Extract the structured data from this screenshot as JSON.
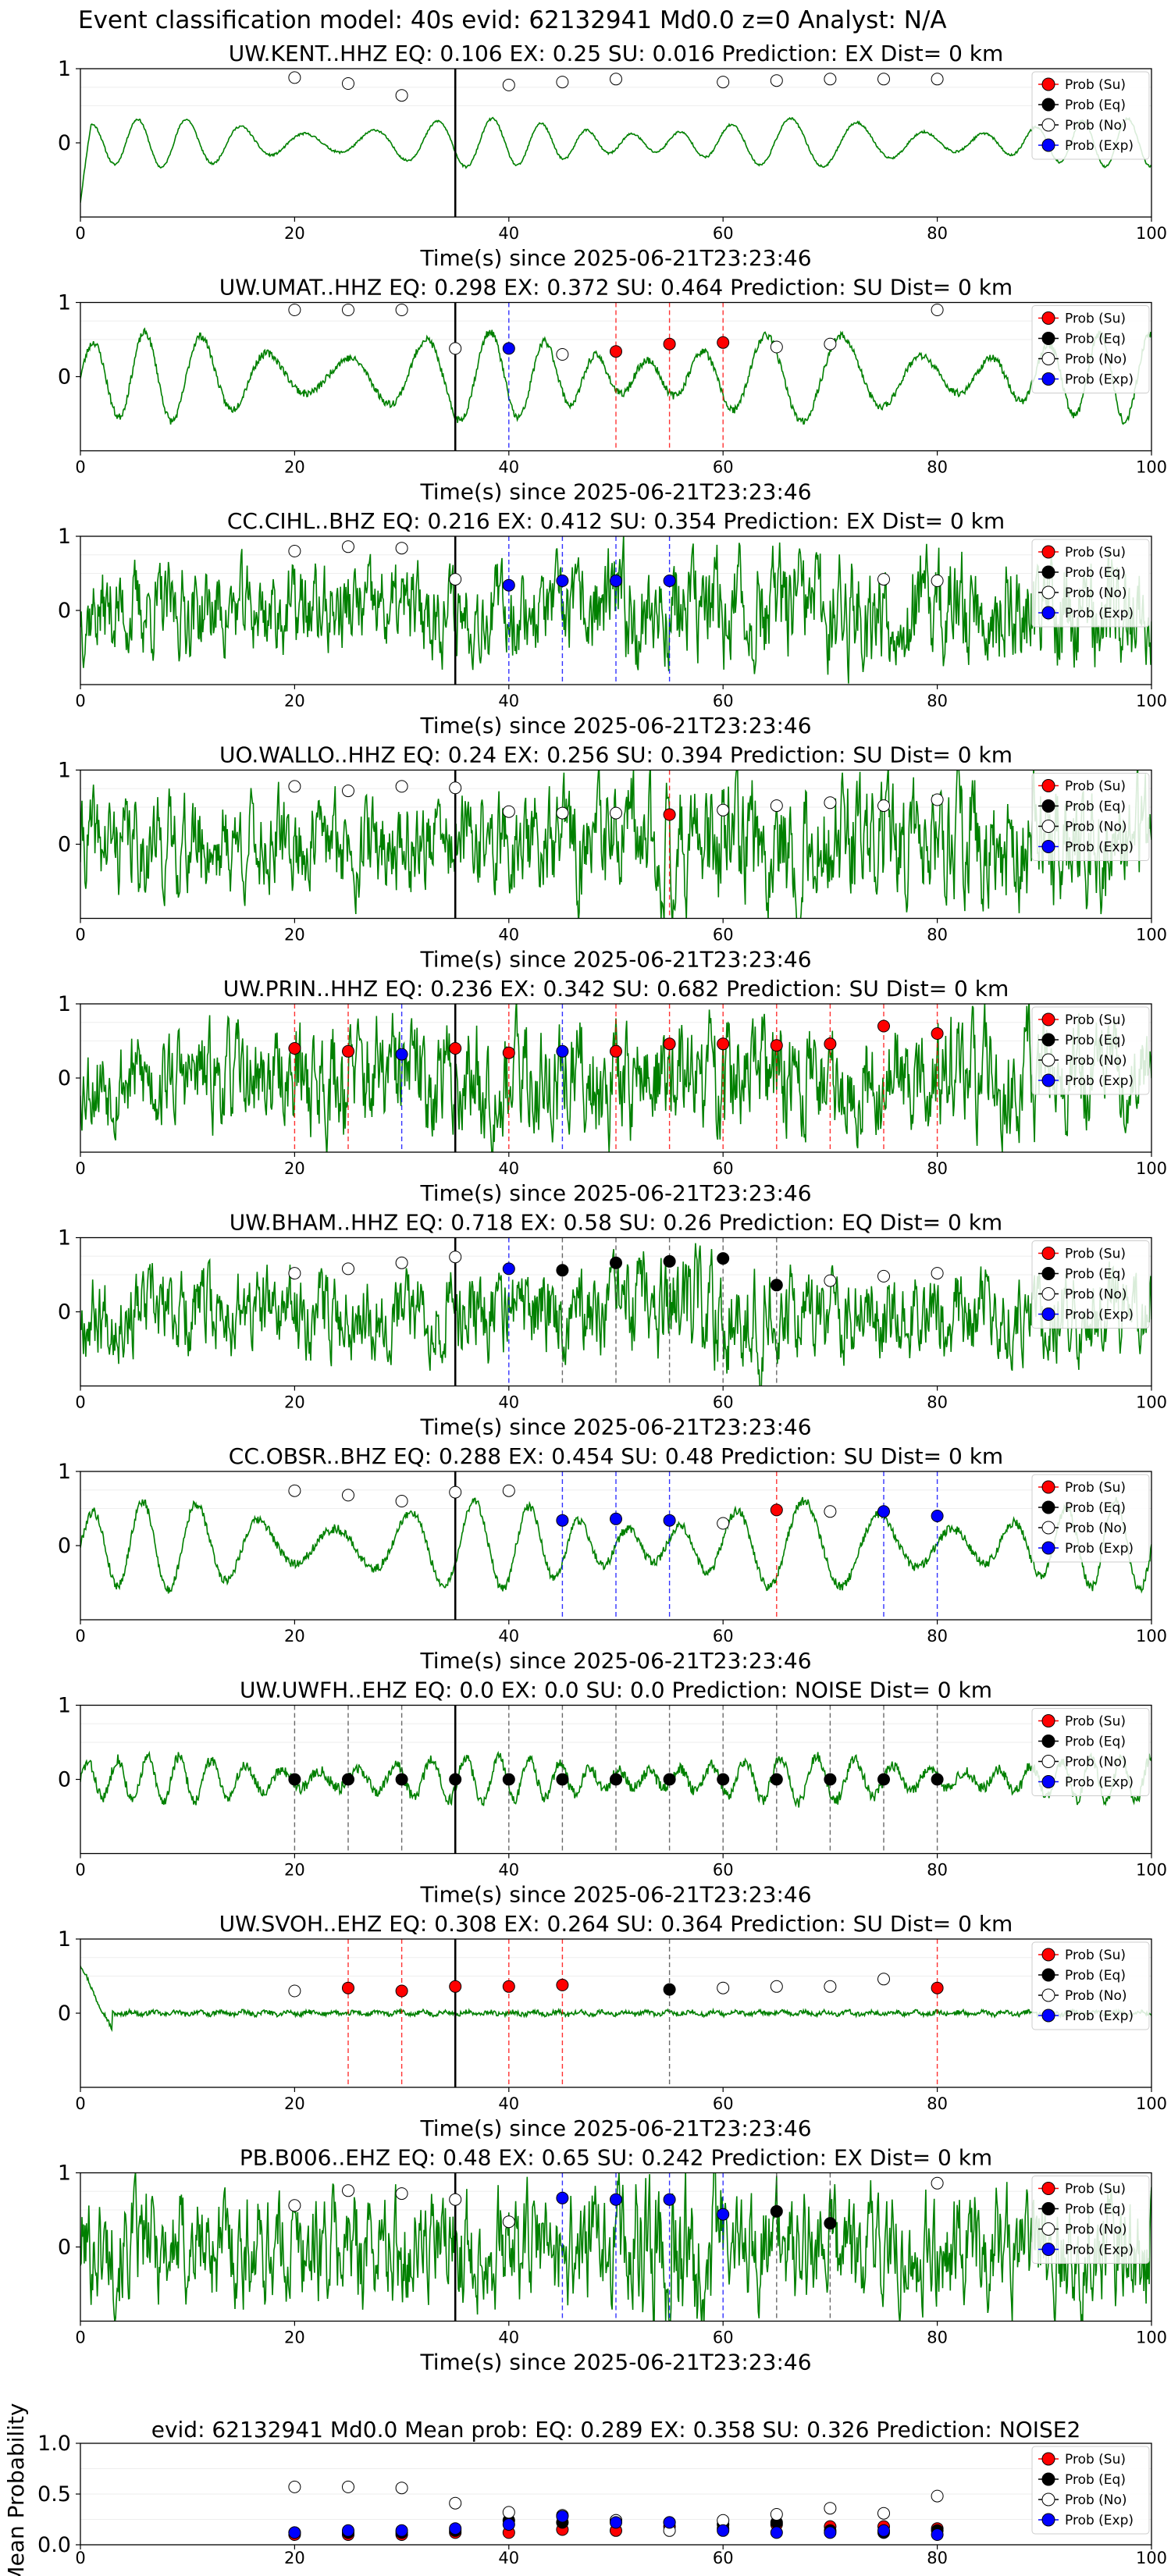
{
  "header": {
    "title": "Event classification model: 40s evid: 62132941 Md0.0 z=0 Analyst: N/A"
  },
  "legend_items": [
    {
      "label": "Prob (Su)",
      "color": "#ff0000"
    },
    {
      "label": "Prob (Eq)",
      "color": "#000000"
    },
    {
      "label": "Prob (No)",
      "color": "#ffffff"
    },
    {
      "label": "Prob (Exp)",
      "color": "#0000ff"
    }
  ],
  "colors": {
    "trace": "#008000",
    "su": "#ff0000",
    "eq": "#000000",
    "no": "#ffffff",
    "exp": "#0000ff"
  },
  "chart_data": [
    {
      "type": "line",
      "title": "UW.KENT..HHZ   EQ: 0.106  EX: 0.25  SU: 0.016   Prediction: EX    Dist= 0 km",
      "xlabel": "Time(s) since 2025-06-21T23:23:46",
      "xlim": [
        0,
        100
      ],
      "ylim": [
        -1,
        1
      ],
      "xticks": [
        0,
        20,
        40,
        60,
        80,
        100
      ],
      "yticks": [
        0,
        1
      ],
      "event_time": 35,
      "points": [
        {
          "x": 20,
          "class": "No",
          "y": 0.88
        },
        {
          "x": 25,
          "class": "No",
          "y": 0.8
        },
        {
          "x": 30,
          "class": "No",
          "y": 0.64
        },
        {
          "x": 40,
          "class": "No",
          "y": 0.78
        },
        {
          "x": 45,
          "class": "No",
          "y": 0.82
        },
        {
          "x": 50,
          "class": "No",
          "y": 0.86
        },
        {
          "x": 60,
          "class": "No",
          "y": 0.82
        },
        {
          "x": 65,
          "class": "No",
          "y": 0.84
        },
        {
          "x": 70,
          "class": "No",
          "y": 0.86
        },
        {
          "x": 75,
          "class": "No",
          "y": 0.86
        },
        {
          "x": 80,
          "class": "No",
          "y": 0.86
        }
      ]
    },
    {
      "type": "line",
      "title": "UW.UMAT..HHZ   EQ: 0.298  EX: 0.372  SU: 0.464   Prediction: SU    Dist= 0 km",
      "xlabel": "Time(s) since 2025-06-21T23:23:46",
      "xlim": [
        0,
        100
      ],
      "ylim": [
        -1,
        1
      ],
      "xticks": [
        0,
        20,
        40,
        60,
        80,
        100
      ],
      "yticks": [
        0,
        1
      ],
      "event_time": 35,
      "points": [
        {
          "x": 20,
          "class": "No",
          "y": 0.9
        },
        {
          "x": 25,
          "class": "No",
          "y": 0.9
        },
        {
          "x": 30,
          "class": "No",
          "y": 0.9
        },
        {
          "x": 35,
          "class": "No",
          "y": 0.38
        },
        {
          "x": 40,
          "class": "Exp",
          "y": 0.38
        },
        {
          "x": 45,
          "class": "No",
          "y": 0.3
        },
        {
          "x": 50,
          "class": "Su",
          "y": 0.34
        },
        {
          "x": 55,
          "class": "Su",
          "y": 0.44
        },
        {
          "x": 60,
          "class": "Su",
          "y": 0.46
        },
        {
          "x": 65,
          "class": "No",
          "y": 0.4
        },
        {
          "x": 70,
          "class": "No",
          "y": 0.44
        },
        {
          "x": 80,
          "class": "No",
          "y": 0.9
        }
      ]
    },
    {
      "type": "line",
      "title": "CC.CIHL..BHZ   EQ: 0.216  EX: 0.412  SU: 0.354   Prediction: EX    Dist= 0 km",
      "xlabel": "Time(s) since 2025-06-21T23:23:46",
      "xlim": [
        0,
        100
      ],
      "ylim": [
        -1,
        1
      ],
      "xticks": [
        0,
        20,
        40,
        60,
        80,
        100
      ],
      "yticks": [
        0,
        1
      ],
      "event_time": 35,
      "points": [
        {
          "x": 20,
          "class": "No",
          "y": 0.8
        },
        {
          "x": 25,
          "class": "No",
          "y": 0.86
        },
        {
          "x": 30,
          "class": "No",
          "y": 0.84
        },
        {
          "x": 35,
          "class": "No",
          "y": 0.42
        },
        {
          "x": 40,
          "class": "Exp",
          "y": 0.34
        },
        {
          "x": 45,
          "class": "Exp",
          "y": 0.4
        },
        {
          "x": 50,
          "class": "Exp",
          "y": 0.4
        },
        {
          "x": 55,
          "class": "Exp",
          "y": 0.4
        },
        {
          "x": 75,
          "class": "No",
          "y": 0.42
        },
        {
          "x": 80,
          "class": "No",
          "y": 0.4
        }
      ]
    },
    {
      "type": "line",
      "title": "UO.WALLO..HHZ   EQ: 0.24  EX: 0.256  SU: 0.394   Prediction: SU    Dist= 0 km",
      "xlabel": "Time(s) since 2025-06-21T23:23:46",
      "xlim": [
        0,
        100
      ],
      "ylim": [
        -1,
        1
      ],
      "xticks": [
        0,
        20,
        40,
        60,
        80,
        100
      ],
      "yticks": [
        0,
        1
      ],
      "event_time": 35,
      "points": [
        {
          "x": 20,
          "class": "No",
          "y": 0.78
        },
        {
          "x": 25,
          "class": "No",
          "y": 0.72
        },
        {
          "x": 30,
          "class": "No",
          "y": 0.78
        },
        {
          "x": 35,
          "class": "No",
          "y": 0.76
        },
        {
          "x": 40,
          "class": "No",
          "y": 0.44
        },
        {
          "x": 45,
          "class": "No",
          "y": 0.42
        },
        {
          "x": 50,
          "class": "No",
          "y": 0.42
        },
        {
          "x": 55,
          "class": "Su",
          "y": 0.4
        },
        {
          "x": 60,
          "class": "No",
          "y": 0.46
        },
        {
          "x": 65,
          "class": "No",
          "y": 0.52
        },
        {
          "x": 70,
          "class": "No",
          "y": 0.56
        },
        {
          "x": 75,
          "class": "No",
          "y": 0.52
        },
        {
          "x": 80,
          "class": "No",
          "y": 0.6
        }
      ]
    },
    {
      "type": "line",
      "title": "UW.PRIN..HHZ   EQ: 0.236  EX: 0.342  SU: 0.682   Prediction: SU    Dist= 0 km",
      "xlabel": "Time(s) since 2025-06-21T23:23:46",
      "xlim": [
        0,
        100
      ],
      "ylim": [
        -1,
        1
      ],
      "xticks": [
        0,
        20,
        40,
        60,
        80,
        100
      ],
      "yticks": [
        0,
        1
      ],
      "event_time": 35,
      "points": [
        {
          "x": 20,
          "class": "Su",
          "y": 0.4
        },
        {
          "x": 25,
          "class": "Su",
          "y": 0.36
        },
        {
          "x": 30,
          "class": "Exp",
          "y": 0.32
        },
        {
          "x": 35,
          "class": "Su",
          "y": 0.4
        },
        {
          "x": 40,
          "class": "Su",
          "y": 0.34
        },
        {
          "x": 45,
          "class": "Exp",
          "y": 0.36
        },
        {
          "x": 50,
          "class": "Su",
          "y": 0.36
        },
        {
          "x": 55,
          "class": "Su",
          "y": 0.46
        },
        {
          "x": 60,
          "class": "Su",
          "y": 0.46
        },
        {
          "x": 65,
          "class": "Su",
          "y": 0.44
        },
        {
          "x": 70,
          "class": "Su",
          "y": 0.46
        },
        {
          "x": 75,
          "class": "Su",
          "y": 0.7
        },
        {
          "x": 80,
          "class": "Su",
          "y": 0.6
        }
      ]
    },
    {
      "type": "line",
      "title": "UW.BHAM..HHZ   EQ: 0.718  EX: 0.58  SU: 0.26   Prediction: EQ    Dist= 0 km",
      "xlabel": "Time(s) since 2025-06-21T23:23:46",
      "xlim": [
        0,
        100
      ],
      "ylim": [
        -1,
        1
      ],
      "xticks": [
        0,
        20,
        40,
        60,
        80,
        100
      ],
      "yticks": [
        0,
        1
      ],
      "event_time": 35,
      "points": [
        {
          "x": 20,
          "class": "No",
          "y": 0.52
        },
        {
          "x": 25,
          "class": "No",
          "y": 0.58
        },
        {
          "x": 30,
          "class": "No",
          "y": 0.66
        },
        {
          "x": 35,
          "class": "No",
          "y": 0.74
        },
        {
          "x": 40,
          "class": "Exp",
          "y": 0.58
        },
        {
          "x": 45,
          "class": "Eq",
          "y": 0.56
        },
        {
          "x": 50,
          "class": "Eq",
          "y": 0.66
        },
        {
          "x": 55,
          "class": "Eq",
          "y": 0.68
        },
        {
          "x": 60,
          "class": "Eq",
          "y": 0.72
        },
        {
          "x": 65,
          "class": "Eq",
          "y": 0.36
        },
        {
          "x": 70,
          "class": "No",
          "y": 0.42
        },
        {
          "x": 75,
          "class": "No",
          "y": 0.48
        },
        {
          "x": 80,
          "class": "No",
          "y": 0.52
        }
      ]
    },
    {
      "type": "line",
      "title": "CC.OBSR..BHZ   EQ: 0.288  EX: 0.454  SU: 0.48   Prediction: SU    Dist= 0 km",
      "xlabel": "Time(s) since 2025-06-21T23:23:46",
      "xlim": [
        0,
        100
      ],
      "ylim": [
        -1,
        1
      ],
      "xticks": [
        0,
        20,
        40,
        60,
        80,
        100
      ],
      "yticks": [
        0,
        1
      ],
      "event_time": 35,
      "points": [
        {
          "x": 20,
          "class": "No",
          "y": 0.74
        },
        {
          "x": 25,
          "class": "No",
          "y": 0.68
        },
        {
          "x": 30,
          "class": "No",
          "y": 0.6
        },
        {
          "x": 35,
          "class": "No",
          "y": 0.72
        },
        {
          "x": 40,
          "class": "No",
          "y": 0.74
        },
        {
          "x": 45,
          "class": "Exp",
          "y": 0.34
        },
        {
          "x": 50,
          "class": "Exp",
          "y": 0.36
        },
        {
          "x": 55,
          "class": "Exp",
          "y": 0.34
        },
        {
          "x": 60,
          "class": "No",
          "y": 0.3
        },
        {
          "x": 65,
          "class": "Su",
          "y": 0.48
        },
        {
          "x": 70,
          "class": "No",
          "y": 0.46
        },
        {
          "x": 75,
          "class": "Exp",
          "y": 0.46
        },
        {
          "x": 80,
          "class": "Exp",
          "y": 0.4
        }
      ]
    },
    {
      "type": "line",
      "title": "UW.UWFH..EHZ   EQ: 0.0  EX: 0.0  SU: 0.0   Prediction: NOISE    Dist= 0 km",
      "xlabel": "Time(s) since 2025-06-21T23:23:46",
      "xlim": [
        0,
        100
      ],
      "ylim": [
        -1,
        1
      ],
      "xticks": [
        0,
        20,
        40,
        60,
        80,
        100
      ],
      "yticks": [
        0,
        1
      ],
      "event_time": 35,
      "points": [
        {
          "x": 20,
          "class": "Eq",
          "y": 0.0
        },
        {
          "x": 25,
          "class": "Eq",
          "y": 0.0
        },
        {
          "x": 30,
          "class": "Eq",
          "y": 0.0
        },
        {
          "x": 35,
          "class": "Eq",
          "y": 0.0
        },
        {
          "x": 40,
          "class": "Eq",
          "y": 0.0
        },
        {
          "x": 45,
          "class": "Eq",
          "y": 0.0
        },
        {
          "x": 50,
          "class": "Eq",
          "y": 0.0
        },
        {
          "x": 55,
          "class": "Eq",
          "y": 0.0
        },
        {
          "x": 60,
          "class": "Eq",
          "y": 0.0
        },
        {
          "x": 65,
          "class": "Eq",
          "y": 0.0
        },
        {
          "x": 70,
          "class": "Eq",
          "y": 0.0
        },
        {
          "x": 75,
          "class": "Eq",
          "y": 0.0
        },
        {
          "x": 80,
          "class": "Eq",
          "y": 0.0
        }
      ]
    },
    {
      "type": "line",
      "title": "UW.SVOH..EHZ   EQ: 0.308  EX: 0.264  SU: 0.364   Prediction: SU    Dist= 0 km",
      "xlabel": "Time(s) since 2025-06-21T23:23:46",
      "xlim": [
        0,
        100
      ],
      "ylim": [
        -1,
        1
      ],
      "xticks": [
        0,
        20,
        40,
        60,
        80,
        100
      ],
      "yticks": [
        0,
        1
      ],
      "event_time": 35,
      "points": [
        {
          "x": 20,
          "class": "No",
          "y": 0.3
        },
        {
          "x": 25,
          "class": "Su",
          "y": 0.34
        },
        {
          "x": 30,
          "class": "Su",
          "y": 0.3
        },
        {
          "x": 35,
          "class": "Su",
          "y": 0.36
        },
        {
          "x": 40,
          "class": "Su",
          "y": 0.36
        },
        {
          "x": 45,
          "class": "Su",
          "y": 0.38
        },
        {
          "x": 55,
          "class": "Eq",
          "y": 0.32
        },
        {
          "x": 60,
          "class": "No",
          "y": 0.34
        },
        {
          "x": 65,
          "class": "No",
          "y": 0.36
        },
        {
          "x": 70,
          "class": "No",
          "y": 0.36
        },
        {
          "x": 75,
          "class": "No",
          "y": 0.46
        },
        {
          "x": 80,
          "class": "Su",
          "y": 0.34
        }
      ]
    },
    {
      "type": "line",
      "title": "PB.B006..EHZ   EQ: 0.48  EX: 0.65  SU: 0.242   Prediction: EX    Dist= 0 km",
      "xlabel": "Time(s) since 2025-06-21T23:23:46",
      "xlim": [
        0,
        100
      ],
      "ylim": [
        -1,
        1
      ],
      "xticks": [
        0,
        20,
        40,
        60,
        80,
        100
      ],
      "yticks": [
        0,
        1
      ],
      "event_time": 35,
      "points": [
        {
          "x": 20,
          "class": "No",
          "y": 0.56
        },
        {
          "x": 25,
          "class": "No",
          "y": 0.76
        },
        {
          "x": 30,
          "class": "No",
          "y": 0.72
        },
        {
          "x": 35,
          "class": "No",
          "y": 0.64
        },
        {
          "x": 40,
          "class": "No",
          "y": 0.34
        },
        {
          "x": 45,
          "class": "Exp",
          "y": 0.66
        },
        {
          "x": 50,
          "class": "Exp",
          "y": 0.64
        },
        {
          "x": 55,
          "class": "Exp",
          "y": 0.64
        },
        {
          "x": 60,
          "class": "Exp",
          "y": 0.44
        },
        {
          "x": 65,
          "class": "Eq",
          "y": 0.48
        },
        {
          "x": 70,
          "class": "Eq",
          "y": 0.32
        },
        {
          "x": 80,
          "class": "No",
          "y": 0.86
        }
      ]
    },
    {
      "type": "scatter",
      "title": "evid: 62132941   Md0.0   Mean prob:   EQ: 0.289  EX: 0.358  SU: 0.326   Prediction: NOISE2",
      "xlabel": "",
      "ylabel": "Mean Probability",
      "xlim": [
        0,
        100
      ],
      "ylim": [
        0,
        1
      ],
      "xticks": [
        0,
        20,
        40,
        60,
        80,
        100
      ],
      "yticks": [
        "0.0",
        "0.5",
        "1.0"
      ],
      "x": [
        20,
        25,
        30,
        35,
        40,
        45,
        50,
        55,
        60,
        65,
        70,
        75,
        80
      ],
      "series": [
        {
          "name": "Prob (Su)",
          "class": "Su",
          "values": [
            0.1,
            0.1,
            0.1,
            0.12,
            0.12,
            0.15,
            0.14,
            0.18,
            0.16,
            0.2,
            0.18,
            0.18,
            0.16
          ]
        },
        {
          "name": "Prob (Eq)",
          "class": "Eq",
          "values": [
            0.12,
            0.12,
            0.12,
            0.14,
            0.24,
            0.22,
            0.24,
            0.22,
            0.2,
            0.22,
            0.14,
            0.12,
            0.14
          ]
        },
        {
          "name": "Prob (No)",
          "class": "No",
          "values": [
            0.57,
            0.57,
            0.56,
            0.41,
            0.32,
            0.29,
            0.24,
            0.14,
            0.24,
            0.3,
            0.36,
            0.31,
            0.48
          ]
        },
        {
          "name": "Prob (Exp)",
          "class": "Exp",
          "values": [
            0.12,
            0.14,
            0.14,
            0.16,
            0.2,
            0.28,
            0.22,
            0.22,
            0.14,
            0.12,
            0.12,
            0.14,
            0.1
          ]
        }
      ]
    }
  ]
}
